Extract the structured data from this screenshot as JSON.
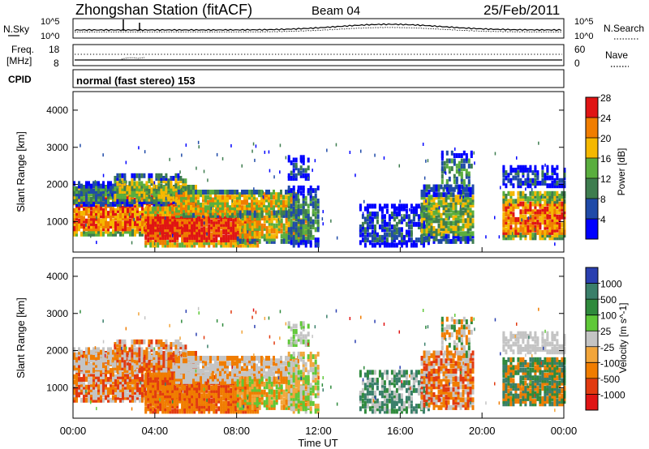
{
  "header": {
    "station": "Zhongshan Station (fitACF)",
    "beam": "Beam 04",
    "date": "25/Feb/2011"
  },
  "noise_panel": {
    "left_label": "N.Sky",
    "right_label": "N.Search",
    "left_ticks": [
      "10^5",
      "10^0"
    ],
    "right_ticks": [
      "10^5",
      "10^0"
    ]
  },
  "freq_panel": {
    "left_label_line1": "Freq.",
    "left_label_line2": "[MHz]",
    "right_label": "Nave",
    "left_ticks": [
      "18",
      "8"
    ],
    "right_ticks": [
      "60",
      "0"
    ]
  },
  "cpid_panel": {
    "label": "CPID",
    "text": "normal (fast stereo) 153"
  },
  "chart_data": [
    {
      "type": "heatmap",
      "panel": "power",
      "ylabel": "Slant Range [km]",
      "xlabel": "",
      "ylim": [
        180,
        4500
      ],
      "yticks": [
        "1000",
        "2000",
        "3000",
        "4000"
      ],
      "colorbar": {
        "label": "Power [dB]",
        "ticks": [
          "4",
          "8",
          "12",
          "16",
          "20",
          "24",
          "28"
        ],
        "colors": [
          "#0000ff",
          "#1f4aa8",
          "#3e7d4f",
          "#5aae3e",
          "#f5b800",
          "#f07d00",
          "#e01414"
        ]
      }
    },
    {
      "type": "heatmap",
      "panel": "velocity",
      "ylabel": "Slant Range [km]",
      "xlabel": "Time UT",
      "ylim": [
        180,
        4500
      ],
      "yticks": [
        "1000",
        "2000",
        "3000",
        "4000"
      ],
      "xticks": [
        "00:00",
        "04:00",
        "08:00",
        "12:00",
        "16:00",
        "20:00",
        "00:00"
      ],
      "colorbar": {
        "label": "Velocity [m s^-1]",
        "ticks": [
          "1000",
          "500",
          "100",
          "25",
          "-25",
          "-100",
          "-500",
          "-1000"
        ],
        "colors": [
          "#2a3fb0",
          "#3a7f6a",
          "#2f8a3c",
          "#5fc838",
          "#c4c4c4",
          "#f2a53a",
          "#f07d00",
          "#e23a10",
          "#e01414"
        ]
      }
    }
  ]
}
